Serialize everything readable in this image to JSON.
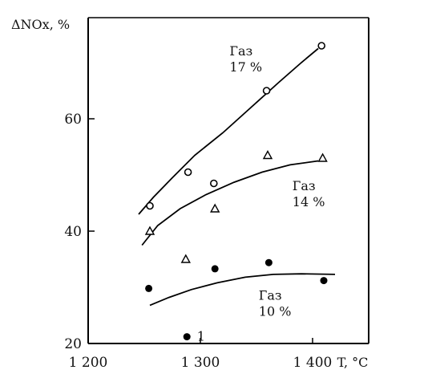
{
  "chart_data": {
    "type": "scatter",
    "title": "",
    "xlabel": "T, °C",
    "ylabel": "ΔNOx, %",
    "xlim": [
      1200,
      1450
    ],
    "ylim": [
      20,
      78
    ],
    "x_ticks": [
      1200,
      1300,
      1400
    ],
    "x_tick_labels": [
      "1 200",
      "1 300",
      "1 400"
    ],
    "y_ticks": [
      20,
      40,
      60
    ],
    "y_tick_labels": [
      "20",
      "40",
      "60"
    ],
    "grid": false,
    "series": [
      {
        "marker": "circle-open",
        "points": [
          [
            1255,
            44.5
          ],
          [
            1289,
            50.5
          ],
          [
            1312,
            48.5
          ],
          [
            1359,
            65
          ],
          [
            1408,
            73
          ]
        ],
        "fit": [
          [
            1245,
            43
          ],
          [
            1258,
            46
          ],
          [
            1275,
            49.5
          ],
          [
            1295,
            53.5
          ],
          [
            1320,
            57.5
          ],
          [
            1345,
            62
          ],
          [
            1370,
            66.5
          ],
          [
            1390,
            70
          ],
          [
            1405,
            72.5
          ]
        ]
      },
      {
        "marker": "triangle-open",
        "points": [
          [
            1255,
            40
          ],
          [
            1287,
            35
          ],
          [
            1313,
            44
          ],
          [
            1360,
            53.5
          ],
          [
            1409,
            53
          ]
        ],
        "fit": [
          [
            1248,
            37.5
          ],
          [
            1262,
            41
          ],
          [
            1282,
            44
          ],
          [
            1305,
            46.5
          ],
          [
            1330,
            48.7
          ],
          [
            1355,
            50.5
          ],
          [
            1380,
            51.8
          ],
          [
            1405,
            52.5
          ]
        ]
      },
      {
        "marker": "circle-filled",
        "points": [
          [
            1254,
            29.8
          ],
          [
            1288,
            21.2
          ],
          [
            1313,
            33.3
          ],
          [
            1361,
            34.4
          ],
          [
            1410,
            31.2
          ]
        ],
        "fit": [
          [
            1255,
            26.8
          ],
          [
            1272,
            28.2
          ],
          [
            1292,
            29.6
          ],
          [
            1315,
            30.8
          ],
          [
            1340,
            31.8
          ],
          [
            1365,
            32.3
          ],
          [
            1390,
            32.4
          ],
          [
            1420,
            32.3
          ]
        ]
      }
    ],
    "annotations": [
      {
        "text_lines": [
          "Газ",
          "17 %"
        ],
        "x": 1326,
        "y": 71.3
      },
      {
        "text_lines": [
          "Газ",
          "14 %"
        ],
        "x": 1382,
        "y": 47.3
      },
      {
        "text_lines": [
          "Газ",
          "10 %"
        ],
        "x": 1352,
        "y": 27.8
      },
      {
        "text_lines": [
          "1"
        ],
        "x": 1297,
        "y": 20.5
      }
    ]
  }
}
